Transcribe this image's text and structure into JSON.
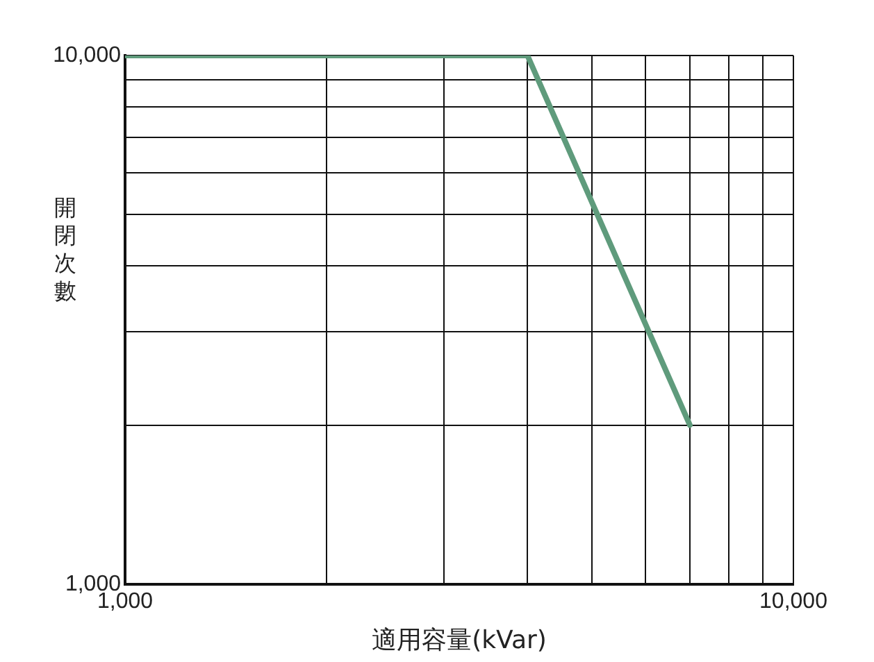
{
  "chart_data": {
    "type": "line",
    "xlabel": "適用容量(kVar)",
    "ylabel": "開閉次數",
    "x": [
      1000,
      4000,
      7000
    ],
    "series": [
      {
        "color": "#5f9b7c",
        "values": [
          10000,
          10000,
          2000
        ]
      }
    ],
    "log": "xy",
    "grid": true,
    "legend": false,
    "marker": "none",
    "line_style": "solid",
    "xlim": [
      1000,
      10000
    ],
    "ylim": [
      1000,
      10000
    ],
    "xticks": [
      {
        "value": 1000,
        "label": "1,000"
      },
      {
        "value": 2000,
        "label": null
      },
      {
        "value": 3000,
        "label": null
      },
      {
        "value": 4000,
        "label": null
      },
      {
        "value": 5000,
        "label": null
      },
      {
        "value": 6000,
        "label": null
      },
      {
        "value": 7000,
        "label": null
      },
      {
        "value": 8000,
        "label": null
      },
      {
        "value": 9000,
        "label": null
      },
      {
        "value": 10000,
        "label": "10,000"
      }
    ],
    "yticks": [
      {
        "value": 1000,
        "label": "1,000"
      },
      {
        "value": 2000,
        "label": null
      },
      {
        "value": 3000,
        "label": null
      },
      {
        "value": 4000,
        "label": null
      },
      {
        "value": 5000,
        "label": null
      },
      {
        "value": 6000,
        "label": null
      },
      {
        "value": 7000,
        "label": null
      },
      {
        "value": 8000,
        "label": null
      },
      {
        "value": 9000,
        "label": null
      },
      {
        "value": 10000,
        "label": "10,000"
      }
    ]
  }
}
